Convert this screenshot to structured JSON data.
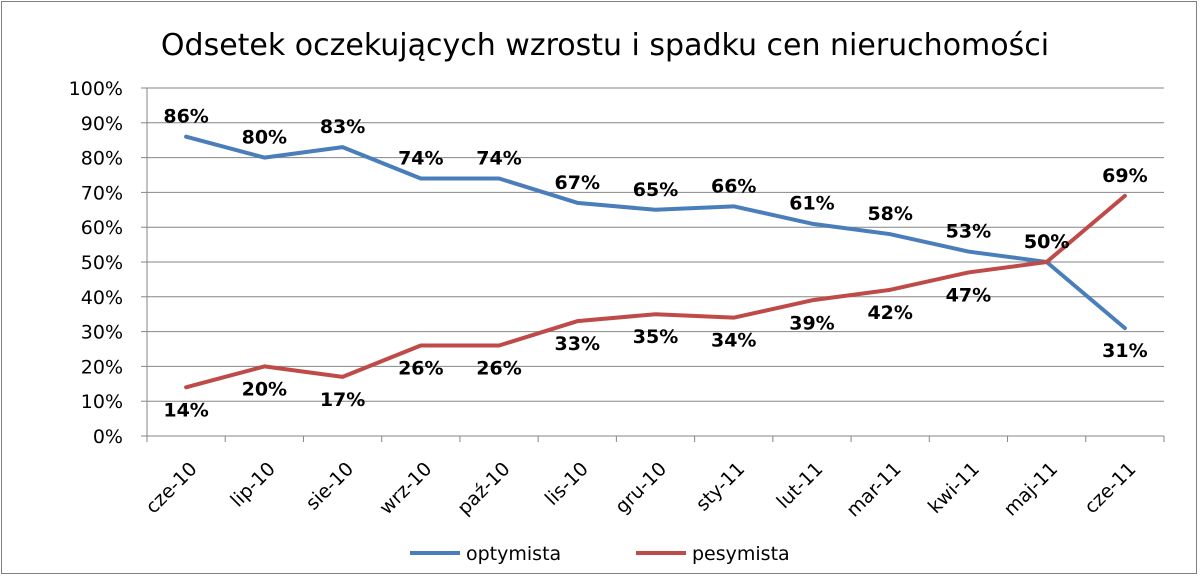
{
  "chart_data": {
    "type": "line",
    "title": "Odsetek oczekujących wzrostu i spadku cen nieruchomości",
    "categories": [
      "cze-10",
      "lip-10",
      "sie-10",
      "wrz-10",
      "paź-10",
      "lis-10",
      "gru-10",
      "sty-11",
      "lut-11",
      "mar-11",
      "kwi-11",
      "maj-11",
      "cze-11"
    ],
    "series": [
      {
        "name": "optymista",
        "color": "#4a7ebb",
        "values": [
          86,
          80,
          83,
          74,
          74,
          67,
          65,
          66,
          61,
          58,
          53,
          50,
          31
        ],
        "labels": [
          "86%",
          "80%",
          "83%",
          "74%",
          "74%",
          "67%",
          "65%",
          "66%",
          "61%",
          "58%",
          "53%",
          "50%",
          "31%"
        ]
      },
      {
        "name": "pesymista",
        "color": "#be4b48",
        "values": [
          14,
          20,
          17,
          26,
          26,
          33,
          35,
          34,
          39,
          42,
          47,
          50,
          69
        ],
        "labels": [
          "14%",
          "20%",
          "17%",
          "26%",
          "26%",
          "33%",
          "35%",
          "34%",
          "39%",
          "42%",
          "47%",
          "50%",
          "69%"
        ]
      }
    ],
    "y_ticks": [
      "0%",
      "10%",
      "20%",
      "30%",
      "40%",
      "50%",
      "60%",
      "70%",
      "80%",
      "90%",
      "100%"
    ],
    "ylim": [
      0,
      100
    ],
    "grid": true,
    "legend_position": "bottom"
  }
}
